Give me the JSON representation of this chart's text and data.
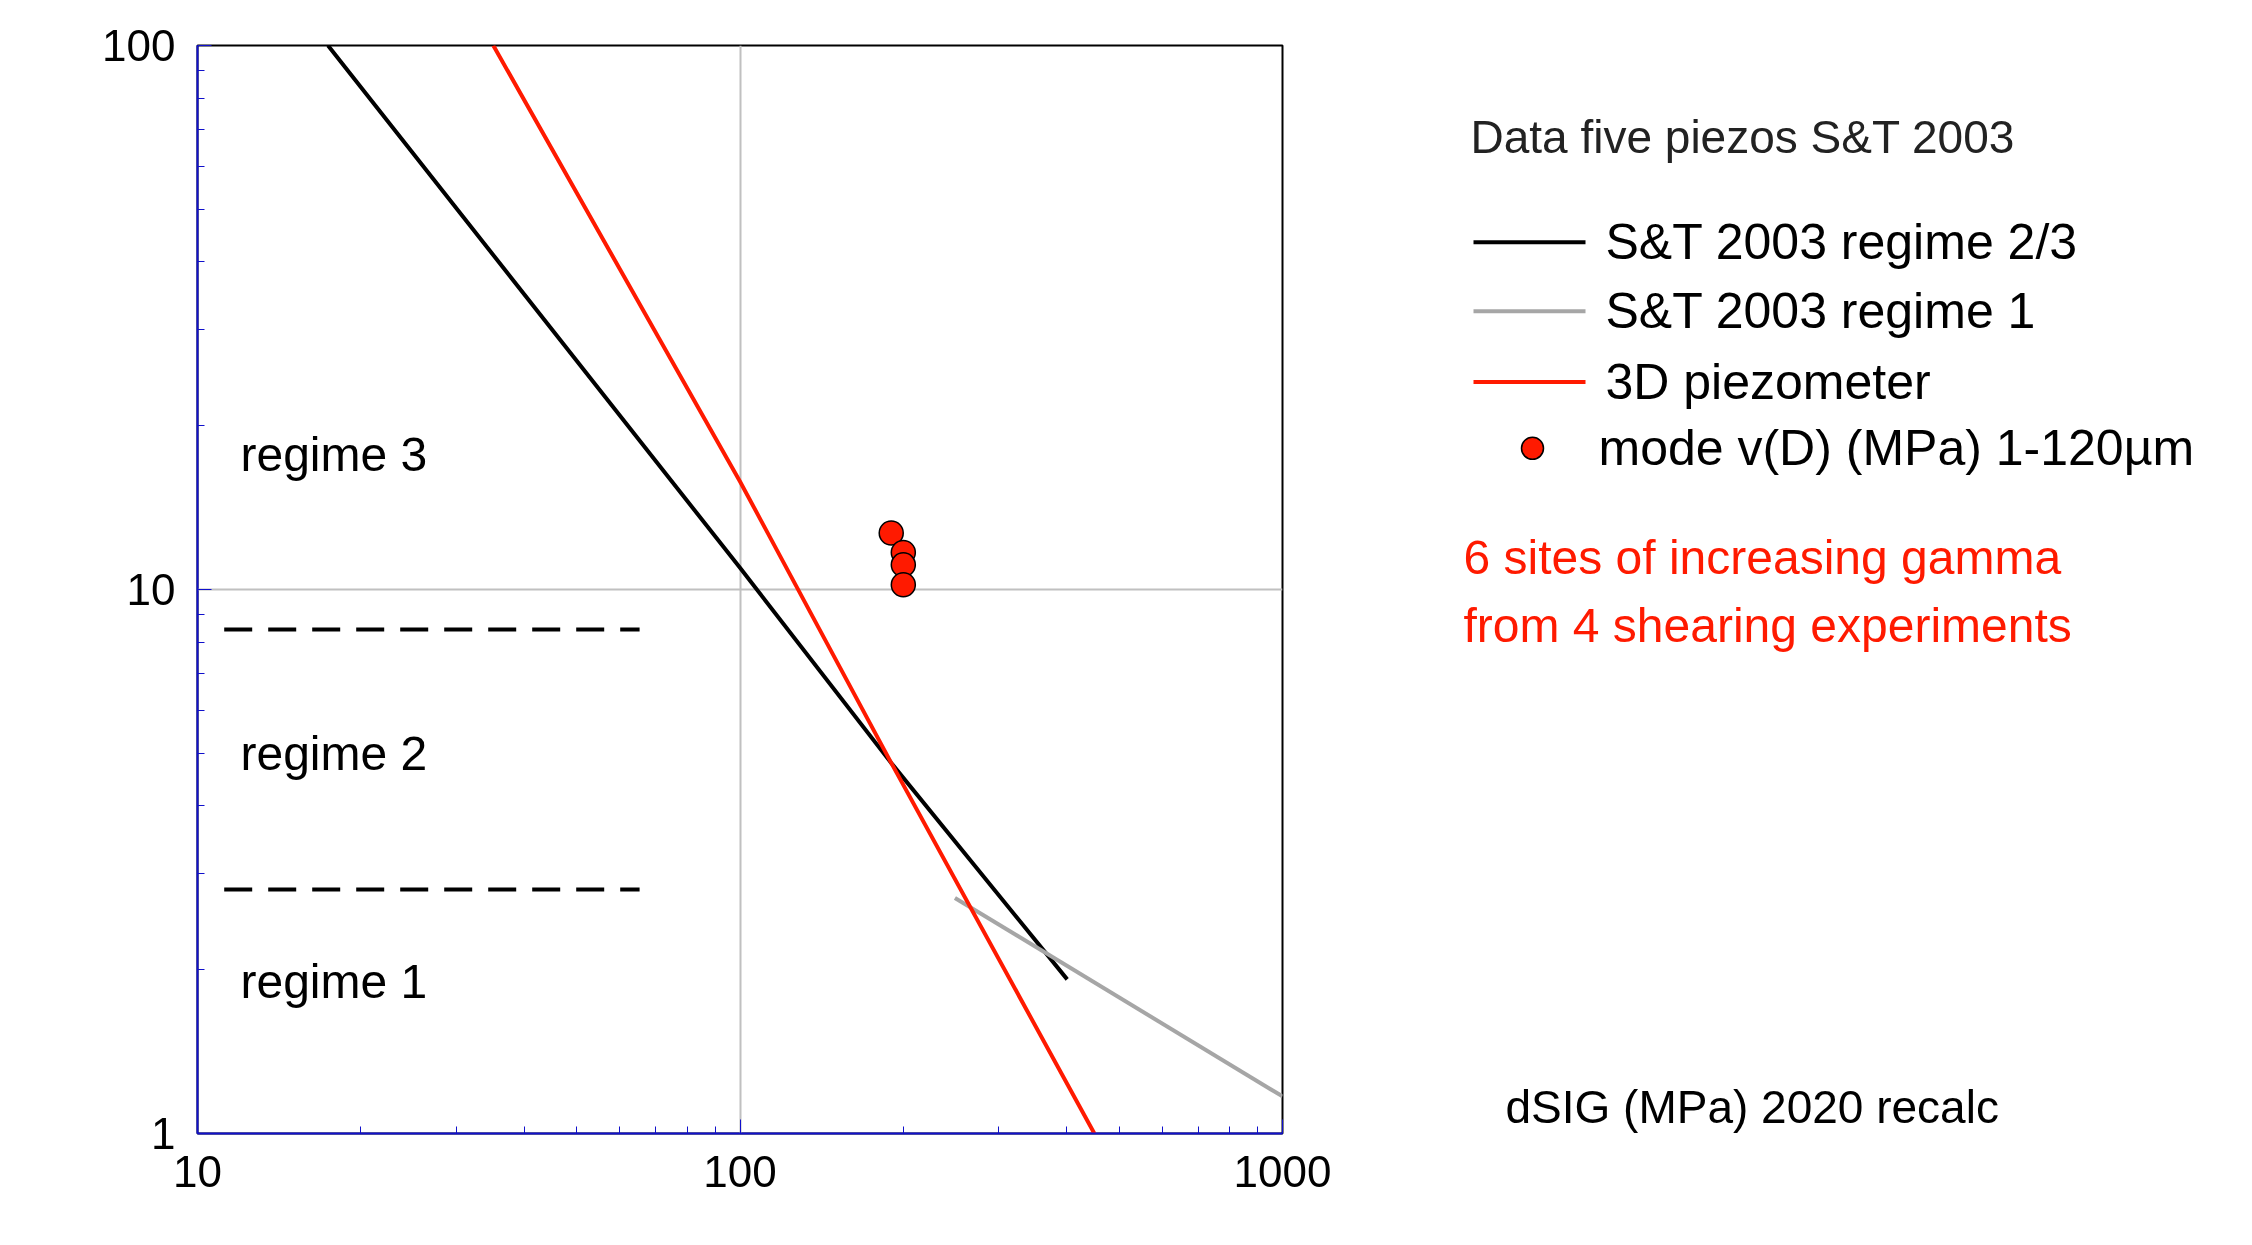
{
  "chart_data": {
    "type": "line",
    "log": "xy",
    "xlim": [
      10,
      1000
    ],
    "ylim": [
      1,
      100
    ],
    "xticks": [
      10,
      100,
      1000
    ],
    "yticks": [
      1,
      10,
      100
    ],
    "grid": true,
    "xlabel": "dSIG (MPa)   2020 recalc",
    "legend_title": "Data five piezos S&T 2003",
    "legend": "right",
    "annotations": [
      "regime 3",
      "regime 2",
      "regime 1",
      "6 sites of increasing gamma\nfrom 4 shearing experiments"
    ],
    "series": [
      {
        "name": "S&T 2003 regime 2/3",
        "color": "#000000",
        "x": [
          17.4,
          100,
          190,
          401
        ],
        "values": [
          100,
          10.96,
          4.8,
          1.92
        ]
      },
      {
        "name": "S&T 2003 regime 1",
        "color": "#a6a6a6",
        "x": [
          249,
          1000
        ],
        "values": [
          2.71,
          1.17
        ]
      },
      {
        "name": "3D piezometer",
        "color": "#ff1a00",
        "x": [
          35.1,
          100,
          190,
          450
        ],
        "values": [
          100,
          15.8,
          4.8,
          1
        ]
      },
      {
        "name": "mode v(D) (MPa) 1-120µm",
        "type": "scatter",
        "marker": "circle",
        "color": "#ff1a00",
        "x": [
          190,
          200,
          200,
          200
        ],
        "values": [
          12.7,
          11.7,
          11.1,
          10.2
        ]
      },
      {
        "color": "#000000",
        "line_style": "dashed",
        "x": [
          11.2,
          65.3
        ],
        "values": [
          8.44,
          8.44
        ]
      },
      {
        "color": "#000000",
        "line_style": "dashed",
        "x": [
          11.2,
          65.3
        ],
        "values": [
          2.81,
          2.81
        ]
      }
    ]
  }
}
